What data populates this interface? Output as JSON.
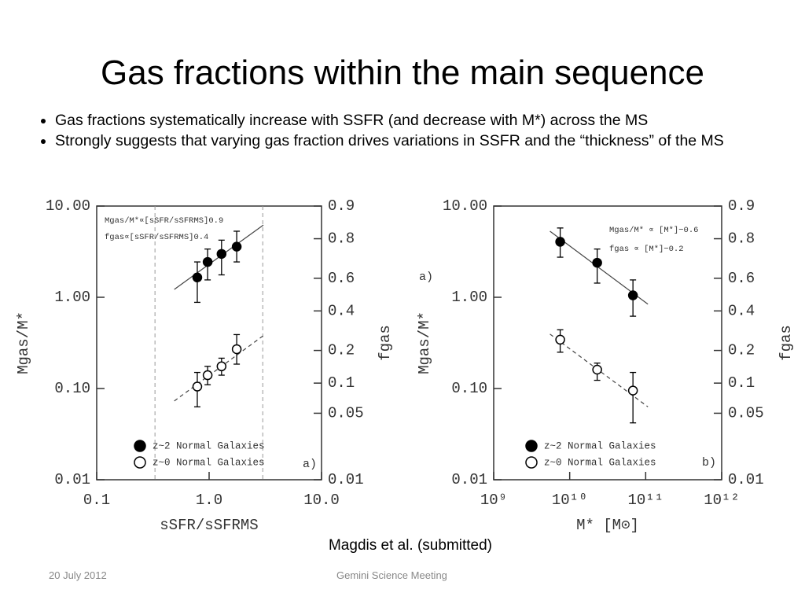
{
  "title": "Gas fractions within the main sequence",
  "bullets": [
    "Gas fractions systematically increase with SSFR (and decrease with M*) across the MS",
    "Strongly suggests that varying gas fraction drives variations in SSFR and the “thickness” of the MS"
  ],
  "caption": "Magdis et al. (submitted)",
  "footer": {
    "date": "20 July 2012",
    "event": "Gemini Science Meeting"
  },
  "chart_data": [
    {
      "type": "scatter",
      "xlabel": "sSFR/sSFRMS",
      "ylabel": "Mgas/M*",
      "y2label": "fgas",
      "xscale": "log",
      "yscale": "log",
      "y2scale": "logit",
      "xlim": [
        0.1,
        10
      ],
      "xticks": [
        0.1,
        {
          "value": 1,
          "label": "1.0"
        },
        {
          "value": 10,
          "label": "10.0"
        }
      ],
      "ylim": [
        0.01,
        10
      ],
      "yticks": [
        {
          "value": 10,
          "label": "10.00"
        },
        {
          "value": 1,
          "label": "1.00"
        },
        {
          "value": 0.1,
          "label": "0.10"
        },
        {
          "value": 0.01,
          "label": "0.01"
        }
      ],
      "y2lim": [
        0.01,
        0.9
      ],
      "y2ticks": [
        0.9,
        0.8,
        0.6,
        0.4,
        0.2,
        0.1,
        0.05,
        0.01
      ],
      "series": [
        {
          "name": "z~2 Normal Galaxies",
          "marker": "filled",
          "color": "#000000",
          "x": [
            0.785,
            0.97,
            1.29,
            1.76
          ],
          "values": [
            1.65,
            2.44,
            2.99,
            3.59
          ],
          "err_low": [
            0.88,
            1.55,
            1.76,
            2.44
          ],
          "err_high": [
            2.44,
            3.38,
            4.23,
            5.3
          ]
        },
        {
          "name": "z~0 Normal Galaxies",
          "marker": "open",
          "color": "#000000",
          "x": [
            0.785,
            0.97,
            1.29,
            1.76
          ],
          "values": [
            0.105,
            0.14,
            0.175,
            0.27
          ],
          "err_low": [
            0.063,
            0.11,
            0.14,
            0.185
          ],
          "err_high": [
            0.15,
            0.175,
            0.215,
            0.39
          ]
        }
      ],
      "fits": [
        {
          "style": "solid",
          "x": [
            0.49,
            3.04
          ],
          "y": [
            1.22,
            6.2
          ]
        },
        {
          "style": "dashed",
          "x": [
            0.49,
            3.04
          ],
          "y": [
            0.073,
            0.38
          ]
        }
      ],
      "vlines": [
        0.33,
        3
      ],
      "annotations": [
        "Mgas/M*∝[sSFR/sSFRMS]0.9",
        "fgas∝[sSFR/sSFRMS]0.4"
      ],
      "panel_label": "a)",
      "outer_label": "a)"
    },
    {
      "type": "scatter",
      "xlabel": "M* [M⊙]",
      "ylabel": "Mgas/M*",
      "y2label": "fgas",
      "xscale": "log",
      "yscale": "log",
      "y2scale": "logit",
      "xlim": [
        1000000000,
        1000000000000
      ],
      "xticks": [
        {
          "value": 1000000000,
          "label": "10⁹"
        },
        {
          "value": 10000000000,
          "label": "10¹⁰"
        },
        {
          "value": 100000000000,
          "label": "10¹¹"
        },
        {
          "value": 1000000000000,
          "label": "10¹²"
        }
      ],
      "ylim": [
        0.01,
        10
      ],
      "yticks": [
        {
          "value": 10,
          "label": "10.00"
        },
        {
          "value": 1,
          "label": "1.00"
        },
        {
          "value": 0.1,
          "label": "0.10"
        },
        {
          "value": 0.01,
          "label": "0.01"
        }
      ],
      "y2lim": [
        0.01,
        0.9
      ],
      "y2ticks": [
        0.9,
        0.8,
        0.6,
        0.4,
        0.2,
        0.1,
        0.05,
        0.01
      ],
      "series": [
        {
          "name": "z~2 Normal Galaxies",
          "marker": "filled",
          "color": "#000000",
          "x": [
            7500000000,
            23000000000,
            68000000000
          ],
          "values": [
            4.06,
            2.39,
            1.05
          ],
          "err_low": [
            2.75,
            1.43,
            0.62
          ],
          "err_high": [
            5.75,
            3.38,
            1.55
          ]
        },
        {
          "name": "z~0 Normal Galaxies",
          "marker": "open",
          "color": "#000000",
          "x": [
            7500000000,
            23000000000,
            68000000000
          ],
          "values": [
            0.343,
            0.161,
            0.095
          ],
          "err_low": [
            0.25,
            0.123,
            0.042
          ],
          "err_high": [
            0.44,
            0.19,
            0.15
          ]
        }
      ],
      "fits": [
        {
          "style": "solid",
          "x": [
            5500000000,
            107000000000
          ],
          "y": [
            5.3,
            0.84
          ]
        },
        {
          "style": "dashed",
          "x": [
            5500000000,
            107000000000
          ],
          "y": [
            0.395,
            0.063
          ]
        }
      ],
      "annotations": [
        "Mgas/M* ∝ [M*]−0.6",
        "fgas ∝ [M*]−0.2"
      ],
      "panel_label": "b)"
    }
  ]
}
